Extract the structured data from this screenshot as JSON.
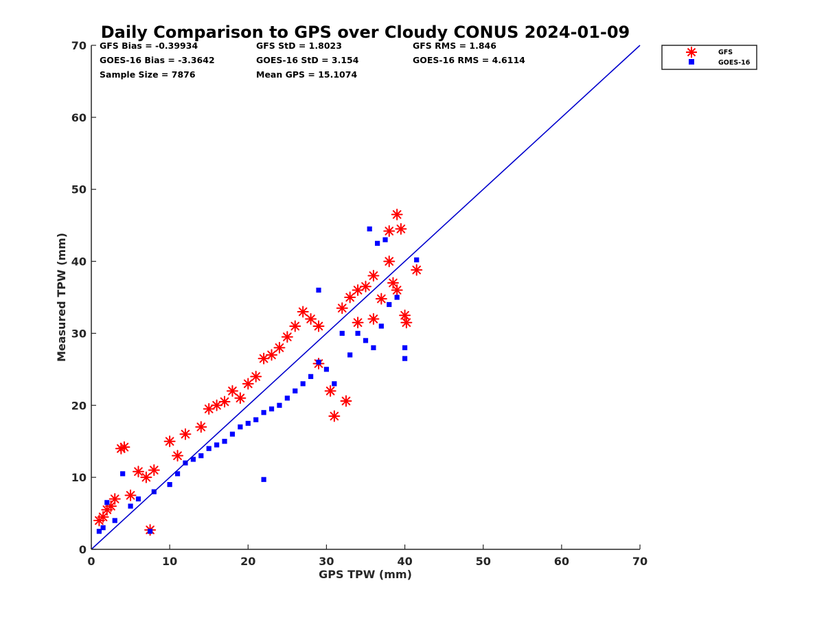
{
  "chart_data": {
    "type": "scatter",
    "title": "Daily Comparison to GPS over Cloudy CONUS 2024-01-09",
    "xlabel": "GPS TPW (mm)",
    "ylabel": "Measured TPW (mm)",
    "xlim": [
      0,
      70
    ],
    "ylim": [
      0,
      70
    ],
    "xticks": [
      "0",
      "10",
      "20",
      "30",
      "40",
      "50",
      "60",
      "70"
    ],
    "yticks": [
      "0",
      "10",
      "20",
      "30",
      "40",
      "50",
      "60",
      "70"
    ],
    "grid": false,
    "legend_position": "outside top-right",
    "reference_line": {
      "type": "one-to-one",
      "color": "#0000CD"
    },
    "stats": [
      [
        "GFS Bias = -0.39934",
        "GFS StD = 1.8023",
        "GFS RMS = 1.846"
      ],
      [
        "GOES-16 Bias = -3.3642",
        "GOES-16 StD = 3.154",
        "GOES-16 RMS = 4.6114"
      ],
      [
        "Sample Size = 7876",
        "Mean GPS = 15.1074",
        ""
      ]
    ],
    "series": [
      {
        "name": "GFS",
        "marker": "asterisk",
        "color": "#FF0000",
        "points": [
          [
            1,
            4
          ],
          [
            1.5,
            4.5
          ],
          [
            2,
            5.5
          ],
          [
            2.5,
            6
          ],
          [
            3,
            7
          ],
          [
            3.8,
            14
          ],
          [
            4.2,
            14.2
          ],
          [
            5,
            7.5
          ],
          [
            6,
            10.8
          ],
          [
            7.5,
            2.7
          ],
          [
            7,
            10
          ],
          [
            8,
            11
          ],
          [
            10,
            15
          ],
          [
            11,
            13
          ],
          [
            12,
            16
          ],
          [
            14,
            17
          ],
          [
            15,
            19.5
          ],
          [
            16,
            20
          ],
          [
            17,
            20.5
          ],
          [
            18,
            22
          ],
          [
            19,
            21
          ],
          [
            20,
            23
          ],
          [
            21,
            24
          ],
          [
            22,
            26.5
          ],
          [
            23,
            27
          ],
          [
            24,
            28
          ],
          [
            25,
            29.5
          ],
          [
            26,
            31
          ],
          [
            27,
            33
          ],
          [
            28,
            32
          ],
          [
            29,
            31
          ],
          [
            29,
            25.8
          ],
          [
            30.5,
            22
          ],
          [
            31,
            18.5
          ],
          [
            32,
            33.5
          ],
          [
            32.5,
            20.6
          ],
          [
            33,
            35
          ],
          [
            34,
            36
          ],
          [
            34,
            31.5
          ],
          [
            35,
            36.5
          ],
          [
            36,
            38
          ],
          [
            36,
            32
          ],
          [
            37,
            34.8
          ],
          [
            38,
            40
          ],
          [
            38.5,
            37
          ],
          [
            39,
            46.5
          ],
          [
            39.5,
            44.5
          ],
          [
            38,
            44.2
          ],
          [
            40,
            32.5
          ],
          [
            40.2,
            31.5
          ],
          [
            41.5,
            38.8
          ],
          [
            39,
            36
          ]
        ]
      },
      {
        "name": "GOES-16",
        "marker": "square",
        "color": "#0000FF",
        "points": [
          [
            1,
            2.5
          ],
          [
            1.5,
            3
          ],
          [
            2,
            6.5
          ],
          [
            3,
            4
          ],
          [
            4,
            10.5
          ],
          [
            5,
            6
          ],
          [
            6,
            7
          ],
          [
            7.5,
            2.5
          ],
          [
            8,
            8
          ],
          [
            10,
            9
          ],
          [
            11,
            10.5
          ],
          [
            12,
            12
          ],
          [
            13,
            12.5
          ],
          [
            14,
            13
          ],
          [
            15,
            14
          ],
          [
            16,
            14.5
          ],
          [
            17,
            15
          ],
          [
            18,
            16
          ],
          [
            19,
            17
          ],
          [
            20,
            17.5
          ],
          [
            21,
            18
          ],
          [
            22,
            19
          ],
          [
            22,
            9.7
          ],
          [
            23,
            19.5
          ],
          [
            24,
            20
          ],
          [
            25,
            21
          ],
          [
            26,
            22
          ],
          [
            27,
            23
          ],
          [
            28,
            24
          ],
          [
            29,
            26
          ],
          [
            30,
            25
          ],
          [
            31,
            23
          ],
          [
            32,
            30
          ],
          [
            33,
            27
          ],
          [
            34,
            30
          ],
          [
            35,
            29
          ],
          [
            35.5,
            44.5
          ],
          [
            36,
            28
          ],
          [
            37,
            31
          ],
          [
            37.5,
            43
          ],
          [
            38,
            34
          ],
          [
            39,
            35
          ],
          [
            40,
            28
          ],
          [
            40,
            26.5
          ],
          [
            41.5,
            40.2
          ],
          [
            36.5,
            42.5
          ],
          [
            29,
            36
          ]
        ]
      }
    ]
  }
}
